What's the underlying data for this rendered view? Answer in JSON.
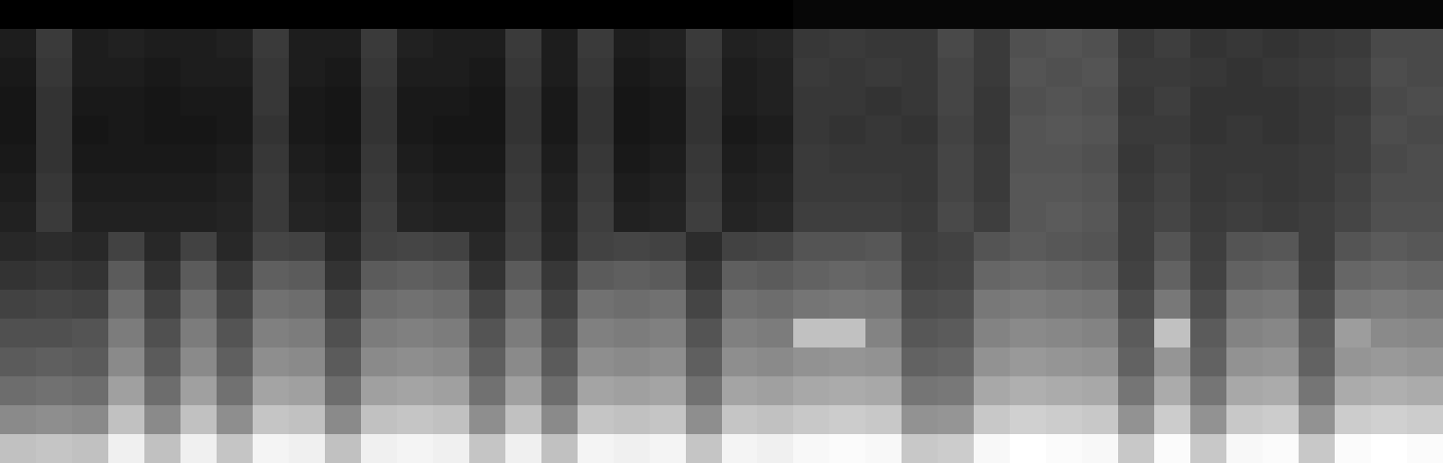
{
  "chart_data": {
    "type": "heatmap",
    "tick_labels": false,
    "grid": false,
    "cells": [
      [
        0.02,
        0.02,
        0.02,
        0.02,
        0.02,
        0.02,
        0.02,
        0.02,
        0.02,
        0.02,
        0.02,
        0.02,
        0.02,
        0.02,
        0.02,
        0.02,
        0.02,
        0.02,
        0.02,
        0.02,
        0.02,
        0.02,
        0.04,
        0.04,
        0.04,
        0.04,
        0.04,
        0.04,
        0.04,
        0.04,
        0.04,
        0.04,
        0.04,
        0.04,
        0.04,
        0.04,
        0.04,
        0.04,
        0.04,
        0.04
      ],
      [
        0.1,
        0.18,
        0.1,
        0.11,
        0.1,
        0.1,
        0.11,
        0.18,
        0.1,
        0.1,
        0.18,
        0.11,
        0.1,
        0.1,
        0.18,
        0.1,
        0.18,
        0.1,
        0.11,
        0.18,
        0.11,
        0.12,
        0.17,
        0.18,
        0.17,
        0.17,
        0.22,
        0.18,
        0.24,
        0.25,
        0.24,
        0.17,
        0.19,
        0.16,
        0.17,
        0.16,
        0.17,
        0.18,
        0.22,
        0.22
      ],
      [
        0.09,
        0.17,
        0.1,
        0.1,
        0.09,
        0.1,
        0.1,
        0.17,
        0.1,
        0.09,
        0.17,
        0.1,
        0.1,
        0.09,
        0.17,
        0.1,
        0.17,
        0.09,
        0.1,
        0.17,
        0.1,
        0.11,
        0.18,
        0.17,
        0.18,
        0.17,
        0.21,
        0.18,
        0.25,
        0.24,
        0.25,
        0.18,
        0.18,
        0.17,
        0.16,
        0.17,
        0.18,
        0.19,
        0.23,
        0.22
      ],
      [
        0.08,
        0.16,
        0.09,
        0.09,
        0.08,
        0.09,
        0.09,
        0.17,
        0.09,
        0.08,
        0.16,
        0.09,
        0.09,
        0.08,
        0.16,
        0.09,
        0.16,
        0.08,
        0.09,
        0.16,
        0.1,
        0.11,
        0.17,
        0.17,
        0.16,
        0.17,
        0.21,
        0.17,
        0.24,
        0.25,
        0.24,
        0.17,
        0.19,
        0.16,
        0.16,
        0.16,
        0.17,
        0.18,
        0.22,
        0.23
      ],
      [
        0.08,
        0.16,
        0.08,
        0.09,
        0.08,
        0.08,
        0.09,
        0.16,
        0.09,
        0.08,
        0.16,
        0.09,
        0.08,
        0.08,
        0.16,
        0.09,
        0.16,
        0.08,
        0.09,
        0.16,
        0.09,
        0.1,
        0.17,
        0.16,
        0.17,
        0.16,
        0.2,
        0.17,
        0.25,
        0.26,
        0.25,
        0.18,
        0.18,
        0.16,
        0.17,
        0.16,
        0.17,
        0.19,
        0.23,
        0.22
      ],
      [
        0.09,
        0.16,
        0.09,
        0.09,
        0.09,
        0.09,
        0.1,
        0.17,
        0.1,
        0.09,
        0.17,
        0.1,
        0.09,
        0.09,
        0.17,
        0.1,
        0.17,
        0.09,
        0.1,
        0.17,
        0.1,
        0.11,
        0.18,
        0.17,
        0.17,
        0.17,
        0.21,
        0.18,
        0.25,
        0.25,
        0.24,
        0.17,
        0.19,
        0.17,
        0.17,
        0.17,
        0.18,
        0.19,
        0.22,
        0.23
      ],
      [
        0.1,
        0.17,
        0.1,
        0.1,
        0.1,
        0.1,
        0.11,
        0.18,
        0.11,
        0.1,
        0.18,
        0.11,
        0.1,
        0.1,
        0.18,
        0.11,
        0.18,
        0.1,
        0.11,
        0.18,
        0.11,
        0.12,
        0.18,
        0.18,
        0.18,
        0.17,
        0.21,
        0.18,
        0.26,
        0.26,
        0.25,
        0.18,
        0.2,
        0.17,
        0.18,
        0.17,
        0.18,
        0.2,
        0.23,
        0.23
      ],
      [
        0.11,
        0.18,
        0.11,
        0.11,
        0.11,
        0.11,
        0.12,
        0.18,
        0.12,
        0.11,
        0.19,
        0.12,
        0.11,
        0.11,
        0.19,
        0.12,
        0.19,
        0.11,
        0.12,
        0.19,
        0.12,
        0.13,
        0.19,
        0.19,
        0.19,
        0.18,
        0.22,
        0.19,
        0.26,
        0.27,
        0.26,
        0.19,
        0.21,
        0.18,
        0.19,
        0.18,
        0.19,
        0.21,
        0.24,
        0.24
      ],
      [
        0.13,
        0.14,
        0.13,
        0.2,
        0.13,
        0.2,
        0.13,
        0.21,
        0.2,
        0.13,
        0.2,
        0.21,
        0.2,
        0.13,
        0.2,
        0.13,
        0.2,
        0.21,
        0.2,
        0.14,
        0.2,
        0.21,
        0.25,
        0.25,
        0.26,
        0.19,
        0.2,
        0.25,
        0.27,
        0.26,
        0.25,
        0.19,
        0.25,
        0.19,
        0.25,
        0.26,
        0.19,
        0.25,
        0.27,
        0.26
      ],
      [
        0.16,
        0.17,
        0.16,
        0.27,
        0.16,
        0.27,
        0.17,
        0.28,
        0.27,
        0.16,
        0.27,
        0.28,
        0.27,
        0.16,
        0.27,
        0.17,
        0.27,
        0.28,
        0.27,
        0.17,
        0.28,
        0.27,
        0.29,
        0.3,
        0.29,
        0.2,
        0.21,
        0.3,
        0.31,
        0.3,
        0.29,
        0.2,
        0.29,
        0.2,
        0.29,
        0.3,
        0.2,
        0.3,
        0.31,
        0.3
      ],
      [
        0.2,
        0.21,
        0.2,
        0.32,
        0.2,
        0.32,
        0.21,
        0.33,
        0.32,
        0.2,
        0.32,
        0.33,
        0.32,
        0.21,
        0.32,
        0.2,
        0.33,
        0.32,
        0.33,
        0.21,
        0.33,
        0.32,
        0.34,
        0.35,
        0.34,
        0.23,
        0.24,
        0.35,
        0.36,
        0.35,
        0.34,
        0.23,
        0.35,
        0.23,
        0.34,
        0.35,
        0.23,
        0.35,
        0.36,
        0.35
      ],
      [
        0.24,
        0.24,
        0.25,
        0.36,
        0.24,
        0.36,
        0.25,
        0.37,
        0.36,
        0.24,
        0.36,
        0.37,
        0.36,
        0.25,
        0.36,
        0.24,
        0.37,
        0.36,
        0.37,
        0.25,
        0.37,
        0.36,
        0.55,
        0.55,
        0.38,
        0.26,
        0.27,
        0.38,
        0.4,
        0.39,
        0.38,
        0.27,
        0.55,
        0.27,
        0.38,
        0.39,
        0.27,
        0.45,
        0.4,
        0.39
      ],
      [
        0.27,
        0.28,
        0.27,
        0.4,
        0.27,
        0.4,
        0.28,
        0.41,
        0.4,
        0.27,
        0.4,
        0.41,
        0.4,
        0.28,
        0.4,
        0.27,
        0.41,
        0.4,
        0.41,
        0.28,
        0.41,
        0.4,
        0.42,
        0.43,
        0.42,
        0.29,
        0.3,
        0.42,
        0.44,
        0.43,
        0.42,
        0.29,
        0.43,
        0.29,
        0.42,
        0.43,
        0.29,
        0.43,
        0.44,
        0.43
      ],
      [
        0.32,
        0.33,
        0.32,
        0.46,
        0.32,
        0.46,
        0.33,
        0.47,
        0.46,
        0.32,
        0.46,
        0.47,
        0.46,
        0.33,
        0.46,
        0.32,
        0.47,
        0.46,
        0.47,
        0.33,
        0.47,
        0.46,
        0.48,
        0.49,
        0.48,
        0.34,
        0.35,
        0.48,
        0.5,
        0.49,
        0.48,
        0.34,
        0.49,
        0.34,
        0.48,
        0.49,
        0.34,
        0.49,
        0.5,
        0.49
      ],
      [
        0.4,
        0.41,
        0.4,
        0.55,
        0.4,
        0.55,
        0.41,
        0.56,
        0.55,
        0.4,
        0.55,
        0.56,
        0.55,
        0.41,
        0.55,
        0.4,
        0.56,
        0.55,
        0.56,
        0.41,
        0.56,
        0.55,
        0.57,
        0.58,
        0.57,
        0.42,
        0.43,
        0.57,
        0.59,
        0.58,
        0.57,
        0.42,
        0.58,
        0.42,
        0.57,
        0.58,
        0.42,
        0.58,
        0.59,
        0.58
      ],
      [
        0.55,
        0.56,
        0.55,
        0.68,
        0.55,
        0.68,
        0.56,
        0.69,
        0.68,
        0.55,
        0.68,
        0.69,
        0.68,
        0.56,
        0.68,
        0.55,
        0.69,
        0.68,
        0.69,
        0.56,
        0.69,
        0.68,
        0.7,
        0.71,
        0.7,
        0.57,
        0.58,
        0.7,
        0.72,
        0.71,
        0.7,
        0.57,
        0.71,
        0.57,
        0.7,
        0.71,
        0.57,
        0.71,
        0.72,
        0.71
      ]
    ]
  }
}
